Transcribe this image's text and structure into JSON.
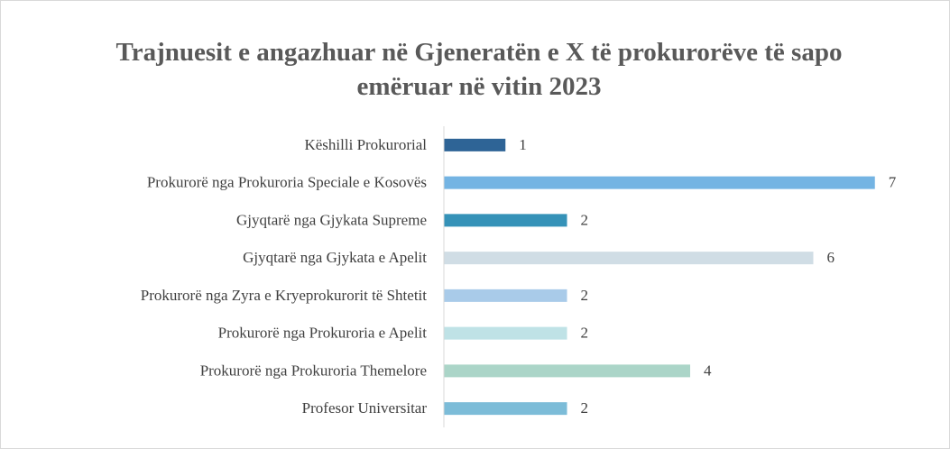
{
  "chart_data": {
    "type": "hbar",
    "title": "Trajnuesit e angazhuar në Gjeneratën e X të prokurorëve të sapo emëruar në vitin 2023",
    "categories": [
      "Këshilli Prokurorial",
      "Prokurorë nga Prokuroria Speciale e Kosovës",
      "Gjyqtarë nga Gjykata Supreme",
      "Gjyqtarë nga Gjykata e Apelit",
      "Prokurorë nga Zyra e Kryeprokurorit të Shtetit",
      "Prokurorë nga Prokuroria e Apelit",
      "Prokurorë nga Prokuroria Themelore",
      "Profesor Universitar"
    ],
    "values": [
      1,
      7,
      2,
      6,
      2,
      2,
      4,
      2
    ],
    "colors": [
      "#2e6496",
      "#74b4e3",
      "#3592b8",
      "#d0dde5",
      "#a9cbe9",
      "#bfe2e6",
      "#abd5c8",
      "#7cbcd8"
    ],
    "xlim": [
      0,
      8
    ]
  }
}
